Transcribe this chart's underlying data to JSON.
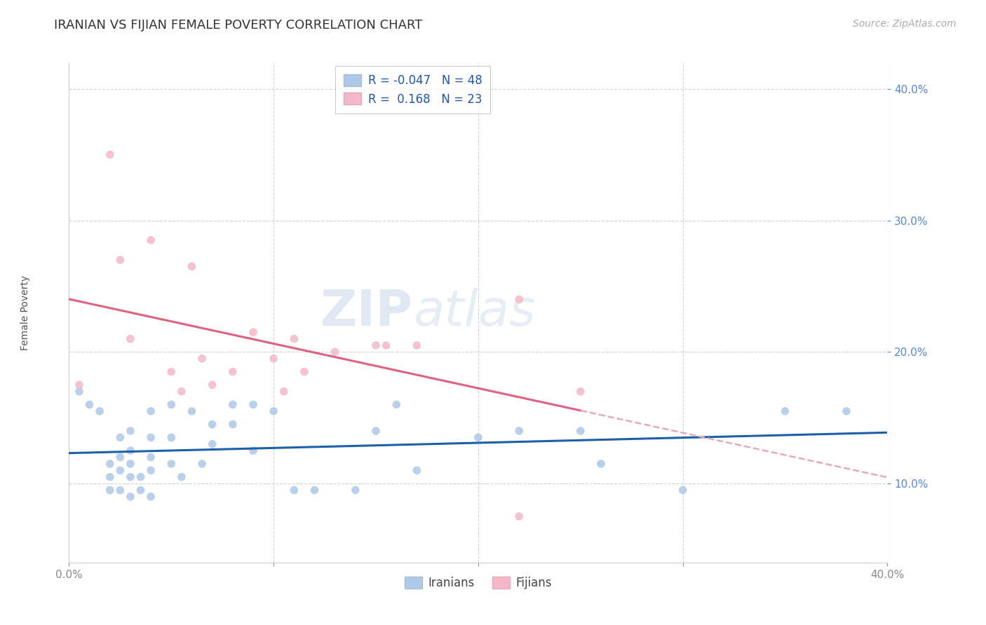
{
  "title": "IRANIAN VS FIJIAN FEMALE POVERTY CORRELATION CHART",
  "source": "Source: ZipAtlas.com",
  "ylabel": "Female Poverty",
  "xlim": [
    0.0,
    0.4
  ],
  "ylim": [
    0.04,
    0.42
  ],
  "y_ticks": [
    0.1,
    0.2,
    0.3,
    0.4
  ],
  "y_tick_labels": [
    "10.0%",
    "20.0%",
    "30.0%",
    "40.0%"
  ],
  "x_ticks": [
    0.0,
    0.1,
    0.2,
    0.3,
    0.4
  ],
  "x_tick_labels": [
    "0.0%",
    "",
    "",
    "",
    "40.0%"
  ],
  "iranian_R": -0.047,
  "iranian_N": 48,
  "fijian_R": 0.168,
  "fijian_N": 23,
  "iranian_color": "#adc8e8",
  "fijian_color": "#f4b8c8",
  "iranian_line_color": "#1a5fa8",
  "fijian_line_color": "#e06080",
  "fijian_dashed_color": "#e8a8b8",
  "watermark": "ZIPatlas",
  "iranian_x": [
    0.005,
    0.01,
    0.015,
    0.02,
    0.02,
    0.02,
    0.025,
    0.025,
    0.025,
    0.025,
    0.03,
    0.03,
    0.03,
    0.03,
    0.03,
    0.035,
    0.035,
    0.04,
    0.04,
    0.04,
    0.04,
    0.04,
    0.05,
    0.05,
    0.05,
    0.055,
    0.06,
    0.065,
    0.07,
    0.07,
    0.08,
    0.08,
    0.09,
    0.09,
    0.1,
    0.11,
    0.12,
    0.14,
    0.15,
    0.16,
    0.17,
    0.2,
    0.22,
    0.25,
    0.26,
    0.3,
    0.35,
    0.38
  ],
  "iranian_y": [
    0.17,
    0.16,
    0.155,
    0.115,
    0.105,
    0.095,
    0.135,
    0.12,
    0.11,
    0.095,
    0.14,
    0.125,
    0.115,
    0.105,
    0.09,
    0.105,
    0.095,
    0.155,
    0.135,
    0.12,
    0.11,
    0.09,
    0.16,
    0.135,
    0.115,
    0.105,
    0.155,
    0.115,
    0.145,
    0.13,
    0.16,
    0.145,
    0.16,
    0.125,
    0.155,
    0.095,
    0.095,
    0.095,
    0.14,
    0.16,
    0.11,
    0.135,
    0.14,
    0.14,
    0.115,
    0.095,
    0.155,
    0.155
  ],
  "fijian_x": [
    0.005,
    0.02,
    0.025,
    0.03,
    0.04,
    0.05,
    0.055,
    0.06,
    0.065,
    0.07,
    0.08,
    0.09,
    0.1,
    0.105,
    0.11,
    0.115,
    0.13,
    0.15,
    0.155,
    0.17,
    0.22,
    0.25,
    0.22
  ],
  "fijian_y": [
    0.175,
    0.35,
    0.27,
    0.21,
    0.285,
    0.185,
    0.17,
    0.265,
    0.195,
    0.175,
    0.185,
    0.215,
    0.195,
    0.17,
    0.21,
    0.185,
    0.2,
    0.205,
    0.205,
    0.205,
    0.075,
    0.17,
    0.24
  ],
  "iranian_size": 70,
  "fijian_size": 70,
  "title_fontsize": 13,
  "axis_label_fontsize": 10,
  "tick_fontsize": 11,
  "legend_fontsize": 12,
  "source_fontsize": 10,
  "fijian_line_x_switch": 0.25
}
